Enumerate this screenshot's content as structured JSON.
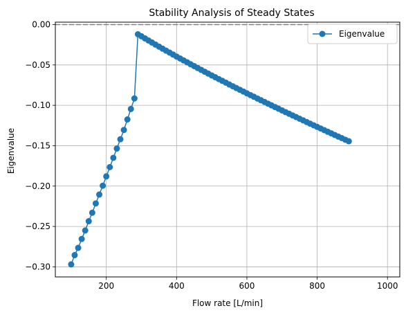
{
  "chart_data": {
    "type": "line",
    "title": "Stability Analysis of Steady States",
    "xlabel": "Flow rate [L/min]",
    "ylabel": "Eigenvalue",
    "xlim": [
      55,
      1035
    ],
    "ylim": [
      -0.3125,
      0.003
    ],
    "grid": true,
    "legend_position": "top-right",
    "reference_line": {
      "y": 0,
      "style": "dashed",
      "color": "#808080"
    },
    "xticks": [
      200,
      400,
      600,
      800,
      1000
    ],
    "xtick_labels": [
      "200",
      "400",
      "600",
      "800",
      "1000"
    ],
    "yticks": [
      0.0,
      -0.05,
      -0.1,
      -0.15,
      -0.2,
      -0.25,
      -0.3
    ],
    "ytick_labels": [
      "0.00",
      "−0.05",
      "−0.10",
      "−0.15",
      "−0.20",
      "−0.25",
      "−0.30"
    ],
    "series": [
      {
        "name": "Eigenvalue",
        "color": "#1f77b4",
        "marker": "circle",
        "x_start": 100,
        "x_step": 10,
        "values": [
          -0.297,
          -0.2855,
          -0.2765,
          -0.2655,
          -0.255,
          -0.2435,
          -0.233,
          -0.2215,
          -0.2105,
          -0.1995,
          -0.188,
          -0.1765,
          -0.165,
          -0.1535,
          -0.142,
          -0.1305,
          -0.1175,
          -0.1045,
          -0.0915,
          -0.012,
          -0.0145,
          -0.0171,
          -0.0197,
          -0.0222,
          -0.0248,
          -0.0273,
          -0.0298,
          -0.0323,
          -0.0347,
          -0.0371,
          -0.0396,
          -0.042,
          -0.0444,
          -0.0467,
          -0.0491,
          -0.0514,
          -0.0538,
          -0.0561,
          -0.0584,
          -0.0607,
          -0.063,
          -0.0652,
          -0.0675,
          -0.0697,
          -0.0719,
          -0.0742,
          -0.0764,
          -0.0786,
          -0.0808,
          -0.0829,
          -0.0851,
          -0.0873,
          -0.0894,
          -0.0916,
          -0.0937,
          -0.0958,
          -0.0979,
          -0.1,
          -0.1021,
          -0.1042,
          -0.1063,
          -0.1084,
          -0.1104,
          -0.1125,
          -0.1145,
          -0.1166,
          -0.1186,
          -0.1207,
          -0.1227,
          -0.1247,
          -0.1267,
          -0.1287,
          -0.1307,
          -0.1327,
          -0.1347,
          -0.1367,
          -0.1387,
          -0.1406,
          -0.1426,
          -0.1445
        ]
      }
    ]
  }
}
